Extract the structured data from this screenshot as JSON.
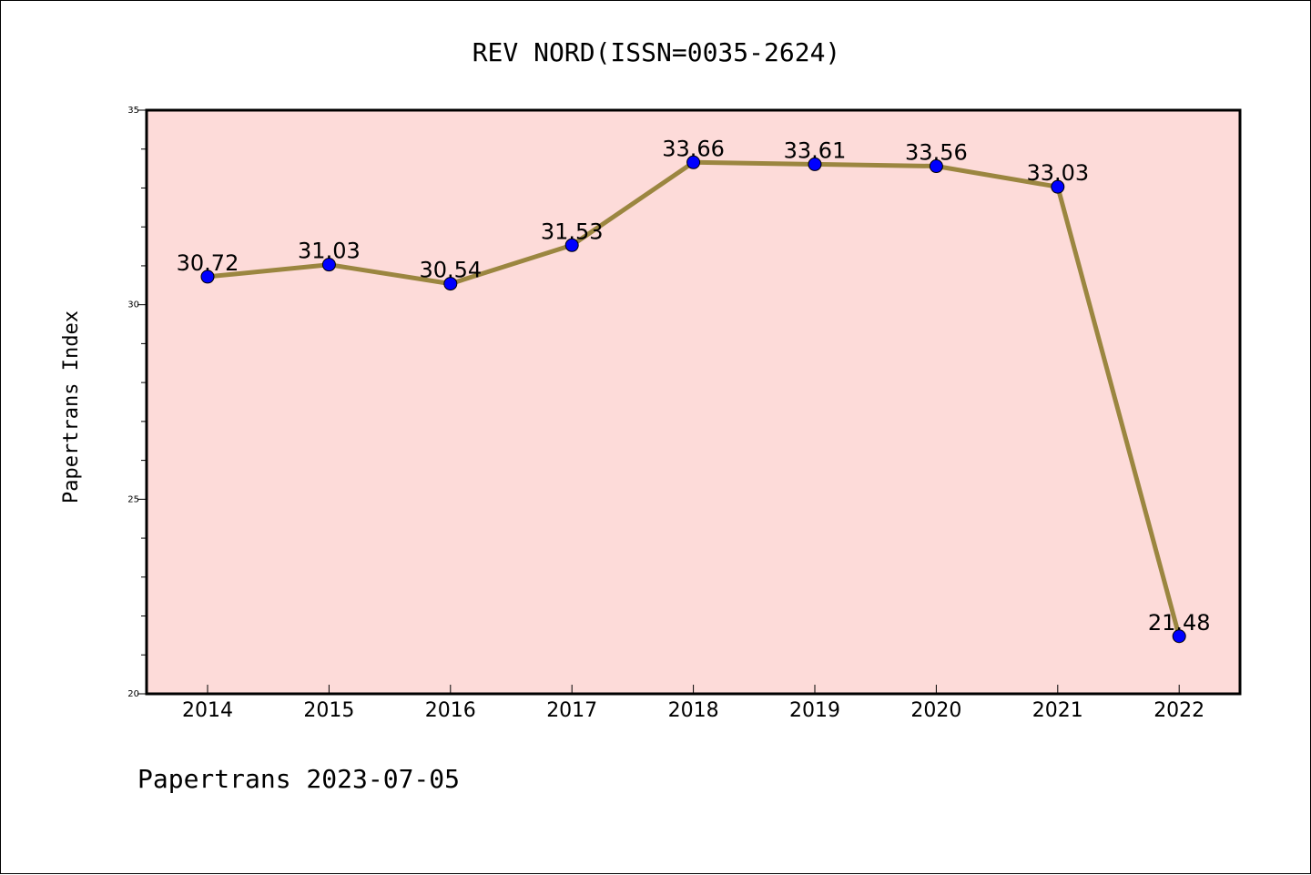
{
  "chart_data": {
    "type": "line",
    "title": "REV NORD(ISSN=0035-2624)",
    "ylabel": "Papertrans Index",
    "xlabel": "",
    "footer": "Papertrans 2023-07-05",
    "categories": [
      "2014",
      "2015",
      "2016",
      "2017",
      "2018",
      "2019",
      "2020",
      "2021",
      "2022"
    ],
    "series": [
      {
        "values": [
          30.72,
          31.03,
          30.54,
          31.53,
          33.66,
          33.61,
          33.56,
          33.03,
          21.48
        ],
        "labels": [
          "30.72",
          "31.03",
          "30.54",
          "31.53",
          "33.66",
          "33.61",
          "33.56",
          "33.03",
          "21.48"
        ]
      }
    ],
    "ylim": [
      20,
      35
    ],
    "yticks": [
      "20",
      "25",
      "30",
      "35"
    ],
    "yminor_step": 1,
    "grid": false,
    "legend": "none",
    "colors": {
      "plot_background": "#fddbd9",
      "line": "#9b8640",
      "marker": "#0000ff",
      "axis": "#000000"
    }
  }
}
